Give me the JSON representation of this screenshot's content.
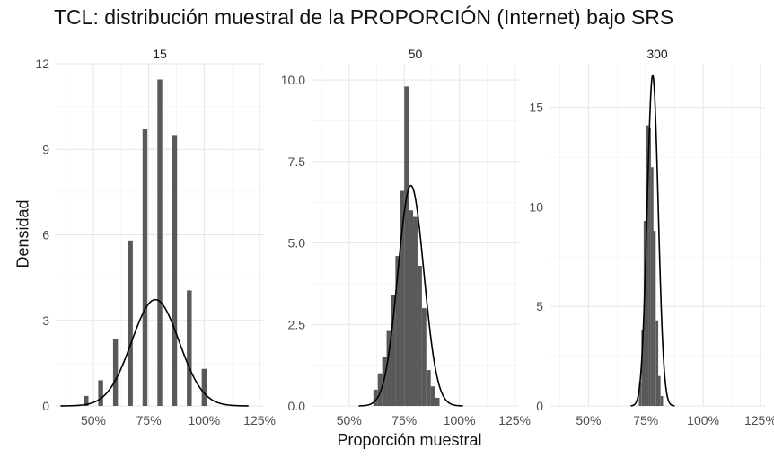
{
  "chart_data": {
    "type": "bar",
    "title": "TCL: distribución muestral de la PROPORCIÓN (Internet) bajo SRS",
    "xlabel": "Proporción muestral",
    "ylabel": "Densidad",
    "x_tick_labels": [
      "50%",
      "75%",
      "100%",
      "125%"
    ],
    "x_ticks": [
      0.5,
      0.75,
      1.0,
      1.25
    ],
    "xlim": [
      0.33,
      1.27
    ],
    "grid": true,
    "legend": "none",
    "bar_color": "#595959",
    "curve_color": "#000000",
    "panels": [
      {
        "facet_label": "15",
        "ylim": [
          0,
          12
        ],
        "y_ticks": [
          0,
          3,
          6,
          9,
          12
        ],
        "y_tick_labels": [
          "0",
          "3",
          "6",
          "9",
          "12"
        ],
        "bin_width": 0.022,
        "bars": [
          {
            "x": 0.467,
            "y": 0.35
          },
          {
            "x": 0.533,
            "y": 0.9
          },
          {
            "x": 0.6,
            "y": 2.35
          },
          {
            "x": 0.667,
            "y": 5.8
          },
          {
            "x": 0.733,
            "y": 9.7
          },
          {
            "x": 0.8,
            "y": 11.45
          },
          {
            "x": 0.867,
            "y": 9.5
          },
          {
            "x": 0.933,
            "y": 4.05
          },
          {
            "x": 1.0,
            "y": 1.3
          }
        ],
        "normal": {
          "mean": 0.78,
          "sd": 0.107
        }
      },
      {
        "facet_label": "50",
        "ylim": [
          0,
          10.5
        ],
        "y_ticks": [
          0,
          2.5,
          5,
          7.5,
          10
        ],
        "y_tick_labels": [
          "0.0",
          "2.5",
          "5.0",
          "7.5",
          "10.0"
        ],
        "bin_width": 0.02,
        "bars": [
          {
            "x": 0.62,
            "y": 0.5
          },
          {
            "x": 0.64,
            "y": 1.0
          },
          {
            "x": 0.66,
            "y": 1.5
          },
          {
            "x": 0.68,
            "y": 2.3
          },
          {
            "x": 0.7,
            "y": 3.4
          },
          {
            "x": 0.72,
            "y": 4.6
          },
          {
            "x": 0.74,
            "y": 6.6
          },
          {
            "x": 0.76,
            "y": 9.8
          },
          {
            "x": 0.78,
            "y": 6.0
          },
          {
            "x": 0.8,
            "y": 5.8
          },
          {
            "x": 0.82,
            "y": 4.3
          },
          {
            "x": 0.84,
            "y": 3.0
          },
          {
            "x": 0.86,
            "y": 1.1
          },
          {
            "x": 0.88,
            "y": 0.6
          },
          {
            "x": 0.9,
            "y": 0.25
          }
        ],
        "normal": {
          "mean": 0.78,
          "sd": 0.059
        }
      },
      {
        "facet_label": "300",
        "ylim": [
          0,
          17.2
        ],
        "y_ticks": [
          0,
          5,
          10,
          15
        ],
        "y_tick_labels": [
          "0",
          "5",
          "10",
          "15"
        ],
        "bin_width": 0.0105,
        "bars": [
          {
            "x": 0.725,
            "y": 1.2
          },
          {
            "x": 0.736,
            "y": 3.8
          },
          {
            "x": 0.746,
            "y": 9.3
          },
          {
            "x": 0.757,
            "y": 14.1
          },
          {
            "x": 0.767,
            "y": 14.0
          },
          {
            "x": 0.778,
            "y": 12.0
          },
          {
            "x": 0.788,
            "y": 8.8
          },
          {
            "x": 0.799,
            "y": 4.3
          },
          {
            "x": 0.809,
            "y": 1.5
          },
          {
            "x": 0.82,
            "y": 0.5
          }
        ],
        "normal": {
          "mean": 0.78,
          "sd": 0.024
        }
      }
    ]
  }
}
